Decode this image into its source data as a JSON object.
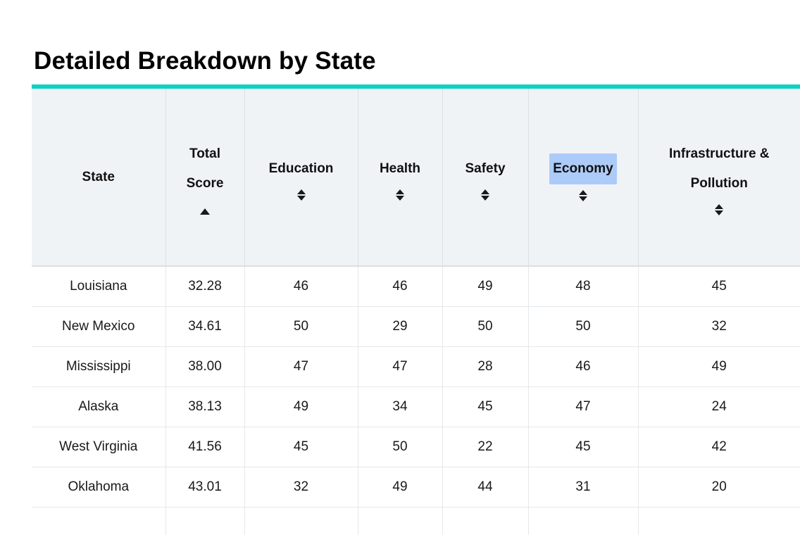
{
  "page": {
    "title": "Detailed Breakdown by State"
  },
  "colors": {
    "accent_teal": "#0fd0c5",
    "header_background": "#f0f3f6",
    "selection_highlight": "#accbf8",
    "row_border": "#e4e8eb",
    "header_border": "#dbe0e4",
    "text": "#17191b"
  },
  "table": {
    "columns": [
      {
        "label": "State",
        "sortable": false,
        "sort": null
      },
      {
        "label": "Total Score",
        "sortable": true,
        "sort": "asc"
      },
      {
        "label": "Education",
        "sortable": true,
        "sort": null
      },
      {
        "label": "Health",
        "sortable": true,
        "sort": null
      },
      {
        "label": "Safety",
        "sortable": true,
        "sort": null
      },
      {
        "label": "Economy",
        "sortable": true,
        "sort": null,
        "highlighted": true
      },
      {
        "label": "Infrastructure & Pollution",
        "sortable": true,
        "sort": null
      }
    ],
    "rows": [
      {
        "state": "Louisiana",
        "total_score": "32.28",
        "education": "46",
        "health": "46",
        "safety": "49",
        "economy": "48",
        "infrastructure_pollution": "45"
      },
      {
        "state": "New Mexico",
        "total_score": "34.61",
        "education": "50",
        "health": "29",
        "safety": "50",
        "economy": "50",
        "infrastructure_pollution": "32"
      },
      {
        "state": "Mississippi",
        "total_score": "38.00",
        "education": "47",
        "health": "47",
        "safety": "28",
        "economy": "46",
        "infrastructure_pollution": "49"
      },
      {
        "state": "Alaska",
        "total_score": "38.13",
        "education": "49",
        "health": "34",
        "safety": "45",
        "economy": "47",
        "infrastructure_pollution": "24"
      },
      {
        "state": "West Virginia",
        "total_score": "41.56",
        "education": "45",
        "health": "50",
        "safety": "22",
        "economy": "45",
        "infrastructure_pollution": "42"
      },
      {
        "state": "Oklahoma",
        "total_score": "43.01",
        "education": "32",
        "health": "49",
        "safety": "44",
        "economy": "31",
        "infrastructure_pollution": "20"
      }
    ]
  }
}
